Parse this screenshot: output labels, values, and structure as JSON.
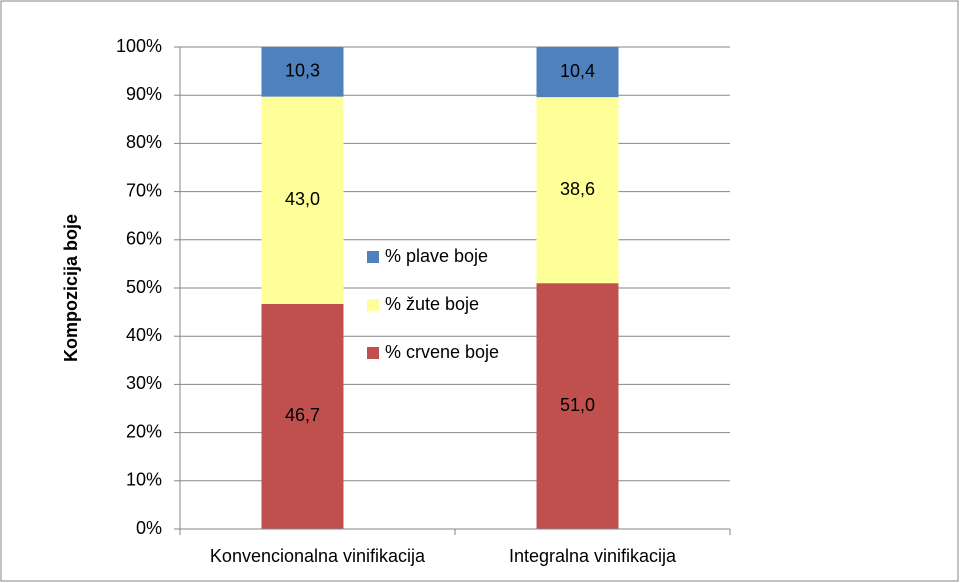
{
  "chart_data": {
    "type": "stacked_bar",
    "y_label": "Kompozicija boje",
    "categories": [
      "Konvencionalna vinifikacija",
      "Integralna vinifikacija"
    ],
    "series": [
      {
        "name": "% crvene boje",
        "color": "#c0504d",
        "values": [
          46.7,
          51.0
        ],
        "value_labels": [
          "46,7",
          "51,0"
        ]
      },
      {
        "name": "% žute boje",
        "color": "#ffff99",
        "values": [
          43.0,
          38.6
        ],
        "value_labels": [
          "43,0",
          "38,6"
        ]
      },
      {
        "name": "% plave boje",
        "color": "#4f81bd",
        "values": [
          10.3,
          10.4
        ],
        "value_labels": [
          "10,3",
          "10,4"
        ]
      }
    ],
    "ylim": [
      0,
      100
    ],
    "yticks": [
      {
        "value": 0,
        "label": "0%"
      },
      {
        "value": 10,
        "label": "10%"
      },
      {
        "value": 20,
        "label": "20%"
      },
      {
        "value": 30,
        "label": "30%"
      },
      {
        "value": 40,
        "label": "40%"
      },
      {
        "value": 50,
        "label": "50%"
      },
      {
        "value": 60,
        "label": "60%"
      },
      {
        "value": 70,
        "label": "70%"
      },
      {
        "value": 80,
        "label": "80%"
      },
      {
        "value": 90,
        "label": "90%"
      },
      {
        "value": 100,
        "label": "100%"
      }
    ],
    "grid": true,
    "legend": "right"
  }
}
